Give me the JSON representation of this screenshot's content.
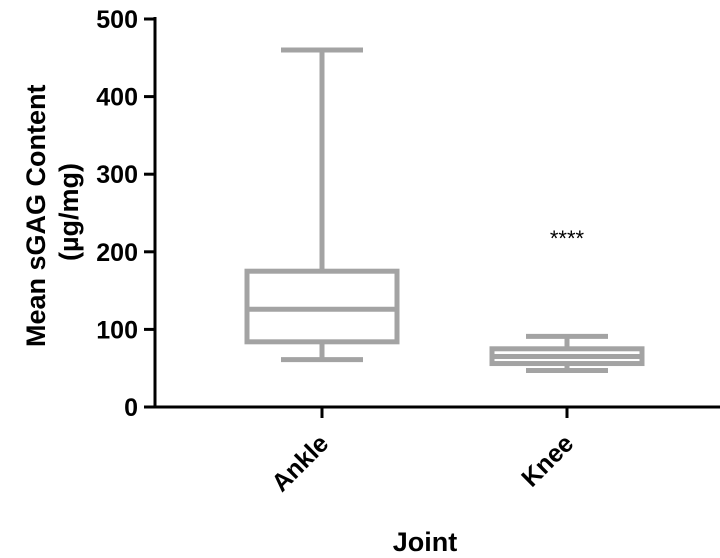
{
  "chart_data": {
    "type": "boxplot",
    "xlabel": "Joint",
    "ylabel_lines": [
      "Mean sGAG Content",
      "(µg/mg)"
    ],
    "ylim": [
      0,
      500
    ],
    "yticks": [
      0,
      100,
      200,
      300,
      400,
      500
    ],
    "categories": [
      "Ankle",
      "Knee"
    ],
    "boxes": [
      {
        "category": "Ankle",
        "min": 61,
        "q1": 84,
        "median": 126,
        "q3": 175,
        "max": 460
      },
      {
        "category": "Knee",
        "min": 47,
        "q1": 56,
        "median": 65,
        "q3": 75,
        "max": 91
      }
    ],
    "annotations": [
      {
        "category": "Knee",
        "text": "****",
        "y": 218
      }
    ],
    "box_color": "#a3a3a3",
    "grid": false
  }
}
